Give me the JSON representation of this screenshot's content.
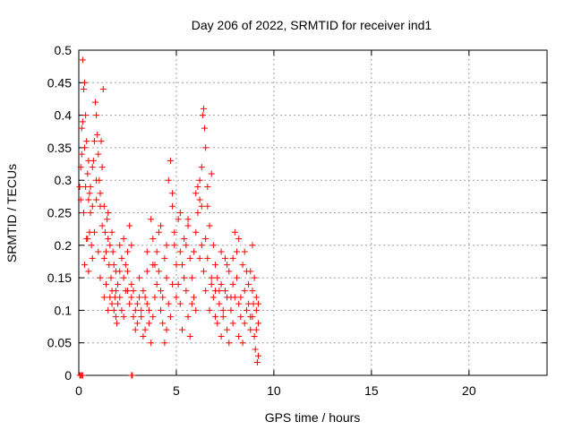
{
  "chart_data": {
    "type": "scatter",
    "title": "Day 206 of 2022, SRMTID for receiver ind1",
    "xlabel": "GPS time / hours",
    "ylabel": "SRMTID / TECUs",
    "xlim": [
      0,
      24
    ],
    "ylim": [
      0,
      0.5
    ],
    "x_ticks": [
      0,
      5,
      10,
      15,
      20
    ],
    "x_tick_labels": [
      "0",
      "5",
      "10",
      "15",
      "20"
    ],
    "y_ticks": [
      0,
      0.05,
      0.1,
      0.15,
      0.2,
      0.25,
      0.3,
      0.35,
      0.4,
      0.45,
      0.5
    ],
    "y_tick_labels": [
      "0",
      "0.05",
      "0.1",
      "0.15",
      "0.2",
      "0.25",
      "0.3",
      "0.35",
      "0.4",
      "0.45",
      "0.5"
    ],
    "grid": true,
    "marker": "plus",
    "color": "#ff0000",
    "series": [
      {
        "name": "SRMTID",
        "points": [
          [
            0.05,
            0.29
          ],
          [
            0.1,
            0.32
          ],
          [
            0.15,
            0.38
          ],
          [
            0.2,
            0.485
          ],
          [
            0.25,
            0.44
          ],
          [
            0.3,
            0.45
          ],
          [
            0.35,
            0.4
          ],
          [
            0.4,
            0.36
          ],
          [
            0.45,
            0.31
          ],
          [
            0.5,
            0.27
          ],
          [
            0.55,
            0.22
          ],
          [
            0.6,
            0.25
          ],
          [
            0.65,
            0.2
          ],
          [
            0.7,
            0.18
          ],
          [
            0.75,
            0.33
          ],
          [
            0.8,
            0.36
          ],
          [
            0.85,
            0.42
          ],
          [
            0.9,
            0.4
          ],
          [
            0.95,
            0.37
          ],
          [
            1.0,
            0.34
          ],
          [
            1.05,
            0.3
          ],
          [
            1.1,
            0.28
          ],
          [
            1.15,
            0.36
          ],
          [
            1.2,
            0.32
          ],
          [
            1.25,
            0.44
          ],
          [
            1.3,
            0.26
          ],
          [
            1.35,
            0.22
          ],
          [
            1.4,
            0.19
          ],
          [
            1.45,
            0.24
          ],
          [
            1.5,
            0.21
          ],
          [
            1.55,
            0.17
          ],
          [
            1.6,
            0.2
          ],
          [
            1.65,
            0.15
          ],
          [
            1.7,
            0.13
          ],
          [
            1.75,
            0.19
          ],
          [
            1.8,
            0.1
          ],
          [
            1.85,
            0.12
          ],
          [
            1.9,
            0.16
          ],
          [
            1.95,
            0.08
          ],
          [
            2.0,
            0.11
          ],
          [
            0.3,
            0.17
          ],
          [
            0.4,
            0.21
          ],
          [
            0.5,
            0.16
          ],
          [
            0.6,
            0.29
          ],
          [
            0.7,
            0.26
          ],
          [
            0.8,
            0.22
          ],
          [
            0.9,
            0.27
          ],
          [
            1.0,
            0.19
          ],
          [
            1.1,
            0.15
          ],
          [
            1.2,
            0.23
          ],
          [
            1.3,
            0.18
          ],
          [
            1.4,
            0.14
          ],
          [
            1.5,
            0.25
          ],
          [
            1.6,
            0.12
          ],
          [
            1.7,
            0.22
          ],
          [
            1.8,
            0.17
          ],
          [
            1.9,
            0.09
          ],
          [
            2.0,
            0.14
          ],
          [
            2.1,
            0.2
          ],
          [
            2.2,
            0.18
          ],
          [
            2.1,
            0.12
          ],
          [
            2.2,
            0.1
          ],
          [
            2.3,
            0.15
          ],
          [
            2.4,
            0.17
          ],
          [
            2.5,
            0.13
          ],
          [
            2.6,
            0.23
          ],
          [
            2.7,
            0.12
          ],
          [
            2.8,
            0.09
          ],
          [
            2.9,
            0.07
          ],
          [
            3.0,
            0.11
          ],
          [
            2.3,
            0.09
          ],
          [
            2.4,
            0.13
          ],
          [
            2.5,
            0.16
          ],
          [
            2.6,
            0.11
          ],
          [
            2.7,
            0.14
          ],
          [
            2.8,
            0.13
          ],
          [
            2.9,
            0.1
          ],
          [
            3.0,
            0.08
          ],
          [
            3.1,
            0.12
          ],
          [
            3.2,
            0.1
          ],
          [
            3.1,
            0.15
          ],
          [
            3.2,
            0.09
          ],
          [
            3.3,
            0.13
          ],
          [
            3.4,
            0.07
          ],
          [
            3.5,
            0.11
          ],
          [
            3.6,
            0.1
          ],
          [
            3.7,
            0.24
          ],
          [
            3.8,
            0.21
          ],
          [
            3.9,
            0.17
          ],
          [
            4.0,
            0.14
          ],
          [
            3.3,
            0.06
          ],
          [
            3.4,
            0.12
          ],
          [
            3.5,
            0.16
          ],
          [
            3.6,
            0.08
          ],
          [
            3.7,
            0.05
          ],
          [
            3.8,
            0.09
          ],
          [
            3.9,
            0.12
          ],
          [
            4.0,
            0.19
          ],
          [
            4.1,
            0.22
          ],
          [
            4.2,
            0.1
          ],
          [
            4.1,
            0.16
          ],
          [
            4.2,
            0.13
          ],
          [
            4.3,
            0.08
          ],
          [
            4.4,
            0.18
          ],
          [
            4.5,
            0.07
          ],
          [
            4.6,
            0.3
          ],
          [
            4.7,
            0.33
          ],
          [
            4.8,
            0.26
          ],
          [
            4.9,
            0.2
          ],
          [
            5.0,
            0.17
          ],
          [
            4.3,
            0.12
          ],
          [
            4.4,
            0.05
          ],
          [
            4.5,
            0.15
          ],
          [
            4.6,
            0.11
          ],
          [
            4.7,
            0.09
          ],
          [
            4.8,
            0.14
          ],
          [
            4.9,
            0.22
          ],
          [
            5.0,
            0.12
          ],
          [
            5.1,
            0.24
          ],
          [
            5.2,
            0.19
          ],
          [
            5.1,
            0.14
          ],
          [
            5.2,
            0.11
          ],
          [
            5.3,
            0.17
          ],
          [
            5.4,
            0.21
          ],
          [
            5.5,
            0.13
          ],
          [
            5.6,
            0.09
          ],
          [
            5.7,
            0.18
          ],
          [
            5.8,
            0.15
          ],
          [
            5.9,
            0.12
          ],
          [
            6.0,
            0.1
          ],
          [
            5.3,
            0.07
          ],
          [
            5.4,
            0.15
          ],
          [
            5.5,
            0.2
          ],
          [
            5.6,
            0.24
          ],
          [
            5.7,
            0.06
          ],
          [
            5.8,
            0.11
          ],
          [
            5.9,
            0.19
          ],
          [
            6.0,
            0.22
          ],
          [
            6.1,
            0.25
          ],
          [
            6.2,
            0.27
          ],
          [
            6.1,
            0.29
          ],
          [
            6.2,
            0.3
          ],
          [
            6.3,
            0.32
          ],
          [
            6.35,
            0.4
          ],
          [
            6.4,
            0.41
          ],
          [
            6.45,
            0.38
          ],
          [
            6.5,
            0.35
          ],
          [
            6.6,
            0.26
          ],
          [
            6.7,
            0.23
          ],
          [
            6.8,
            0.31
          ],
          [
            6.3,
            0.2
          ],
          [
            6.4,
            0.16
          ],
          [
            6.5,
            0.13
          ],
          [
            6.6,
            0.18
          ],
          [
            6.7,
            0.1
          ],
          [
            6.8,
            0.14
          ],
          [
            6.9,
            0.12
          ],
          [
            7.0,
            0.09
          ],
          [
            7.1,
            0.15
          ],
          [
            7.2,
            0.13
          ],
          [
            6.9,
            0.2
          ],
          [
            7.0,
            0.17
          ],
          [
            7.1,
            0.08
          ],
          [
            7.2,
            0.11
          ],
          [
            7.3,
            0.14
          ],
          [
            7.4,
            0.1
          ],
          [
            7.5,
            0.18
          ],
          [
            7.6,
            0.07
          ],
          [
            7.7,
            0.16
          ],
          [
            7.8,
            0.12
          ],
          [
            7.3,
            0.06
          ],
          [
            7.4,
            0.09
          ],
          [
            7.5,
            0.13
          ],
          [
            7.6,
            0.17
          ],
          [
            7.7,
            0.05
          ],
          [
            7.8,
            0.1
          ],
          [
            7.9,
            0.14
          ],
          [
            8.0,
            0.22
          ],
          [
            8.1,
            0.19
          ],
          [
            8.2,
            0.11
          ],
          [
            7.9,
            0.08
          ],
          [
            8.0,
            0.12
          ],
          [
            8.1,
            0.15
          ],
          [
            8.2,
            0.06
          ],
          [
            8.3,
            0.09
          ],
          [
            8.4,
            0.17
          ],
          [
            8.5,
            0.13
          ],
          [
            8.6,
            0.1
          ],
          [
            8.7,
            0.14
          ],
          [
            8.8,
            0.07
          ],
          [
            8.3,
            0.12
          ],
          [
            8.4,
            0.05
          ],
          [
            8.5,
            0.08
          ],
          [
            8.6,
            0.16
          ],
          [
            8.7,
            0.11
          ],
          [
            8.8,
            0.09
          ],
          [
            8.9,
            0.13
          ],
          [
            9.0,
            0.06
          ],
          [
            9.1,
            0.1
          ],
          [
            9.2,
            0.03
          ],
          [
            8.9,
            0.2
          ],
          [
            9.0,
            0.15
          ],
          [
            9.1,
            0.12
          ],
          [
            9.2,
            0.08
          ],
          [
            9.15,
            0.02
          ],
          [
            9.05,
            0.04
          ],
          [
            8.95,
            0.11
          ],
          [
            9.1,
            0.07
          ],
          [
            8.9,
            0.09
          ],
          [
            9.2,
            0.11
          ],
          [
            3.5,
            0.19
          ],
          [
            3.8,
            0.17
          ],
          [
            4.2,
            0.23
          ],
          [
            4.5,
            0.2
          ],
          [
            4.8,
            0.28
          ],
          [
            5.2,
            0.25
          ],
          [
            5.6,
            0.23
          ],
          [
            6.0,
            0.28
          ],
          [
            6.3,
            0.26
          ],
          [
            6.6,
            0.29
          ],
          [
            7.6,
            0.12
          ],
          [
            7.9,
            0.18
          ],
          [
            8.2,
            0.21
          ],
          [
            8.5,
            0.19
          ],
          [
            8.8,
            0.16
          ],
          [
            7.3,
            0.19
          ],
          [
            7.0,
            0.13
          ],
          [
            6.8,
            0.15
          ],
          [
            6.5,
            0.21
          ],
          [
            6.2,
            0.18
          ],
          [
            2.7,
            0.2
          ],
          [
            2.5,
            0.19
          ],
          [
            2.3,
            0.21
          ],
          [
            2.1,
            0.16
          ],
          [
            1.9,
            0.13
          ],
          [
            1.7,
            0.11
          ],
          [
            1.5,
            0.1
          ],
          [
            1.3,
            0.12
          ],
          [
            1.1,
            0.26
          ],
          [
            0.9,
            0.3
          ],
          [
            0.7,
            0.32
          ],
          [
            0.5,
            0.33
          ],
          [
            0.3,
            0.35
          ],
          [
            0.2,
            0.39
          ],
          [
            0.15,
            0.34
          ],
          [
            0.1,
            0.27
          ],
          [
            0.25,
            0.25
          ],
          [
            0.35,
            0.29
          ],
          [
            0.45,
            0.21
          ],
          [
            0.55,
            0.28
          ],
          [
            0.05,
            0.0
          ],
          [
            0.1,
            0.0
          ],
          [
            0.15,
            0.0
          ],
          [
            0.2,
            0.0
          ],
          [
            2.7,
            0.0
          ],
          [
            2.75,
            0.0
          ]
        ]
      }
    ]
  }
}
